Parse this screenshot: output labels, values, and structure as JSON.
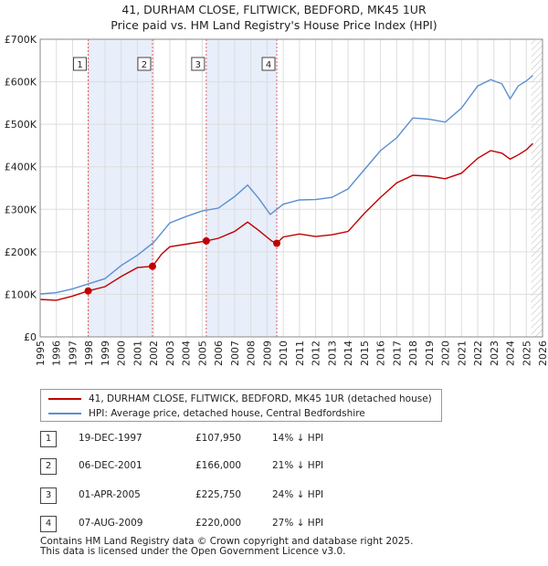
{
  "title": {
    "line1": "41, DURHAM CLOSE, FLITWICK, BEDFORD, MK45 1UR",
    "line2": "Price paid vs. HM Land Registry's House Price Index (HPI)"
  },
  "chart_data": {
    "type": "line",
    "xlim": [
      1995,
      2026
    ],
    "ylim": [
      0,
      700000
    ],
    "y_ticks": [
      0,
      100000,
      200000,
      300000,
      400000,
      500000,
      600000,
      700000
    ],
    "y_tick_labels": [
      "£0",
      "£100K",
      "£200K",
      "£300K",
      "£400K",
      "£500K",
      "£600K",
      "£700K"
    ],
    "x_ticks": [
      1995,
      1996,
      1997,
      1998,
      1999,
      2000,
      2001,
      2002,
      2003,
      2004,
      2005,
      2006,
      2007,
      2008,
      2009,
      2010,
      2011,
      2012,
      2013,
      2014,
      2015,
      2016,
      2017,
      2018,
      2019,
      2020,
      2021,
      2022,
      2023,
      2024,
      2025,
      2026
    ],
    "x_tick_labels": [
      "1995",
      "1996",
      "1997",
      "1998",
      "1999",
      "2000",
      "2001",
      "2002",
      "2003",
      "2004",
      "2005",
      "2006",
      "2007",
      "2008",
      "2009",
      "2010",
      "2011",
      "2012",
      "2013",
      "2014",
      "2015",
      "2016",
      "2017",
      "2018",
      "2019",
      "2020",
      "2021",
      "2022",
      "2023",
      "2024",
      "2025",
      "2026"
    ],
    "grid": true,
    "shaded_spans": [
      [
        1997.96,
        2001.93
      ],
      [
        2005.25,
        2009.6
      ]
    ],
    "future_hatch_from": 2025.3,
    "series": [
      {
        "name": "41, DURHAM CLOSE, FLITWICK, BEDFORD, MK45 1UR (detached house)",
        "color": "#c00000",
        "x": [
          1995,
          1996,
          1997,
          1997.96,
          1999,
          2000,
          2001,
          2001.93,
          2002.5,
          2003,
          2004,
          2005.25,
          2006,
          2007,
          2007.8,
          2008.5,
          2009.3,
          2009.6,
          2010,
          2011,
          2012,
          2013,
          2014,
          2015,
          2016,
          2017,
          2018,
          2019,
          2020,
          2021,
          2022,
          2022.8,
          2023.5,
          2024,
          2024.5,
          2025,
          2025.4
        ],
        "y": [
          88000,
          86000,
          96000,
          107950,
          118000,
          142000,
          163000,
          166000,
          195000,
          212000,
          218000,
          225750,
          232000,
          248000,
          270000,
          250000,
          225000,
          220000,
          235000,
          242000,
          236000,
          240000,
          248000,
          290000,
          328000,
          362000,
          380000,
          378000,
          372000,
          385000,
          420000,
          438000,
          432000,
          418000,
          428000,
          440000,
          455000
        ]
      },
      {
        "name": "HPI: Average price, detached house, Central Bedfordshire",
        "color": "#5b8fcf",
        "x": [
          1995,
          1996,
          1997,
          1998,
          1999,
          2000,
          2001,
          2002,
          2003,
          2004,
          2005,
          2006,
          2007,
          2007.8,
          2008.5,
          2009.2,
          2010,
          2011,
          2012,
          2013,
          2014,
          2015,
          2016,
          2017,
          2018,
          2019,
          2020,
          2021,
          2022,
          2022.8,
          2023.5,
          2024,
          2024.5,
          2025,
          2025.4
        ],
        "y": [
          101000,
          104000,
          113000,
          125000,
          137000,
          168000,
          192000,
          222000,
          268000,
          283000,
          296000,
          303000,
          330000,
          357000,
          325000,
          288000,
          312000,
          322000,
          323000,
          328000,
          348000,
          393000,
          438000,
          468000,
          515000,
          512000,
          505000,
          538000,
          590000,
          605000,
          595000,
          560000,
          590000,
          602000,
          615000
        ]
      }
    ],
    "markers": [
      {
        "label": "1",
        "x": 1997.96,
        "y": 107950
      },
      {
        "label": "2",
        "x": 2001.93,
        "y": 166000
      },
      {
        "label": "3",
        "x": 2005.25,
        "y": 225750
      },
      {
        "label": "4",
        "x": 2009.6,
        "y": 220000
      }
    ]
  },
  "legend": {
    "items": [
      {
        "label": "41, DURHAM CLOSE, FLITWICK, BEDFORD, MK45 1UR (detached house)",
        "color": "#c00000"
      },
      {
        "label": "HPI: Average price, detached house, Central Bedfordshire",
        "color": "#5b8fcf"
      }
    ]
  },
  "sales": [
    {
      "num": "1",
      "date": "19-DEC-1997",
      "price": "£107,950",
      "hpi": "14% ↓ HPI"
    },
    {
      "num": "2",
      "date": "06-DEC-2001",
      "price": "£166,000",
      "hpi": "21% ↓ HPI"
    },
    {
      "num": "3",
      "date": "01-APR-2005",
      "price": "£225,750",
      "hpi": "24% ↓ HPI"
    },
    {
      "num": "4",
      "date": "07-AUG-2009",
      "price": "£220,000",
      "hpi": "27% ↓ HPI"
    }
  ],
  "footer": {
    "line1": "Contains HM Land Registry data © Crown copyright and database right 2025.",
    "line2": "This data is licensed under the Open Government Licence v3.0."
  }
}
